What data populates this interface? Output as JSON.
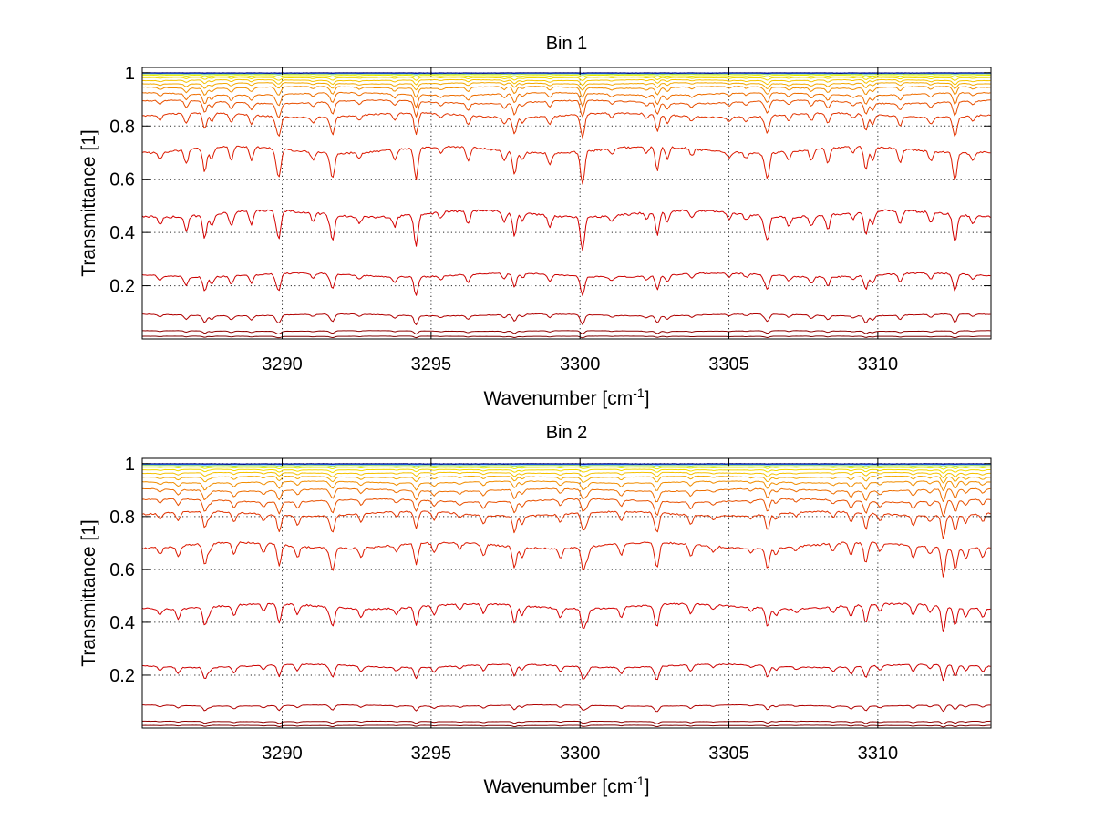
{
  "chart_data": [
    {
      "type": "line",
      "title": "Bin 1",
      "xlabel": "Wavenumber [cm",
      "xlabel_superscript": "-1",
      "xlabel_close": "]",
      "ylabel": "Transmittance [1]",
      "xlim": [
        3285.3,
        3313.8
      ],
      "ylim": [
        0.0,
        1.02
      ],
      "xticks": [
        3290,
        3295,
        3300,
        3305,
        3310
      ],
      "xticklabels": [
        "3290",
        "3295",
        "3300",
        "3305",
        "3310"
      ],
      "yticks": [
        0.2,
        0.4,
        0.6,
        0.8,
        1.0
      ],
      "yticklabels": [
        "0.2",
        "0.4",
        "0.6",
        "0.8",
        "1"
      ],
      "grid": true,
      "series": [
        {
          "name": "s1",
          "level": 0.01,
          "depth": 0.005,
          "color": "#7f0000"
        },
        {
          "name": "s2",
          "level": 0.03,
          "depth": 0.01,
          "color": "#8f0000"
        },
        {
          "name": "s3",
          "level": 0.09,
          "depth": 0.03,
          "color": "#b00000"
        },
        {
          "name": "s4",
          "level": 0.24,
          "depth": 0.06,
          "color": "#cc0000"
        },
        {
          "name": "s5",
          "level": 0.47,
          "depth": 0.1,
          "color": "#d40000"
        },
        {
          "name": "s6",
          "level": 0.71,
          "depth": 0.1,
          "color": "#dc1a00"
        },
        {
          "name": "s7",
          "level": 0.84,
          "depth": 0.07,
          "color": "#e23300"
        },
        {
          "name": "s8",
          "level": 0.89,
          "depth": 0.05,
          "color": "#e85000"
        },
        {
          "name": "s9",
          "level": 0.92,
          "depth": 0.04,
          "color": "#ee6e00"
        },
        {
          "name": "s10",
          "level": 0.945,
          "depth": 0.03,
          "color": "#f18d00"
        },
        {
          "name": "s11",
          "level": 0.96,
          "depth": 0.02,
          "color": "#f3a800"
        },
        {
          "name": "s12",
          "level": 0.972,
          "depth": 0.015,
          "color": "#f5c200"
        },
        {
          "name": "s13",
          "level": 0.982,
          "depth": 0.01,
          "color": "#f4d800"
        },
        {
          "name": "s14",
          "level": 0.99,
          "depth": 0.006,
          "color": "#eaea00"
        },
        {
          "name": "s15",
          "level": 0.995,
          "depth": 0.003,
          "color": "#a8e04c"
        },
        {
          "name": "s16",
          "level": 0.998,
          "depth": 0.002,
          "color": "#3fb8ff"
        },
        {
          "name": "s17",
          "level": 0.999,
          "depth": 0.001,
          "color": "#0028ff"
        },
        {
          "name": "s18",
          "level": 1.0,
          "depth": 0.001,
          "color": "#000080"
        }
      ]
    },
    {
      "type": "line",
      "title": "Bin 2",
      "xlabel": "Wavenumber [cm",
      "xlabel_superscript": "-1",
      "xlabel_close": "]",
      "ylabel": "Transmittance [1]",
      "xlim": [
        3285.3,
        3313.8
      ],
      "ylim": [
        0.0,
        1.02
      ],
      "xticks": [
        3290,
        3295,
        3300,
        3305,
        3310
      ],
      "xticklabels": [
        "3290",
        "3295",
        "3300",
        "3305",
        "3310"
      ],
      "yticks": [
        0.2,
        0.4,
        0.6,
        0.8,
        1.0
      ],
      "yticklabels": [
        "0.2",
        "0.4",
        "0.6",
        "0.8",
        "1"
      ],
      "grid": true,
      "series": [
        {
          "name": "s1",
          "level": 0.01,
          "depth": 0.005,
          "color": "#7f0000"
        },
        {
          "name": "s2",
          "level": 0.025,
          "depth": 0.008,
          "color": "#8f0000"
        },
        {
          "name": "s3",
          "level": 0.085,
          "depth": 0.02,
          "color": "#b00000"
        },
        {
          "name": "s4",
          "level": 0.235,
          "depth": 0.05,
          "color": "#cc0000"
        },
        {
          "name": "s5",
          "level": 0.46,
          "depth": 0.08,
          "color": "#d40000"
        },
        {
          "name": "s6",
          "level": 0.69,
          "depth": 0.09,
          "color": "#dc1a00"
        },
        {
          "name": "s7",
          "level": 0.81,
          "depth": 0.07,
          "color": "#e23300"
        },
        {
          "name": "s8",
          "level": 0.86,
          "depth": 0.05,
          "color": "#e85000"
        },
        {
          "name": "s9",
          "level": 0.9,
          "depth": 0.04,
          "color": "#ee6e00"
        },
        {
          "name": "s10",
          "level": 0.93,
          "depth": 0.03,
          "color": "#f18d00"
        },
        {
          "name": "s11",
          "level": 0.95,
          "depth": 0.02,
          "color": "#f3a800"
        },
        {
          "name": "s12",
          "level": 0.965,
          "depth": 0.015,
          "color": "#f5c200"
        },
        {
          "name": "s13",
          "level": 0.977,
          "depth": 0.01,
          "color": "#f4d800"
        },
        {
          "name": "s14",
          "level": 0.986,
          "depth": 0.006,
          "color": "#eaea00"
        },
        {
          "name": "s15",
          "level": 0.993,
          "depth": 0.004,
          "color": "#a8e04c"
        },
        {
          "name": "s16",
          "level": 0.997,
          "depth": 0.002,
          "color": "#3fb8ff"
        },
        {
          "name": "s17",
          "level": 0.999,
          "depth": 0.001,
          "color": "#0028ff"
        },
        {
          "name": "s18",
          "level": 1.0,
          "depth": 0.001,
          "color": "#000080"
        }
      ]
    }
  ]
}
